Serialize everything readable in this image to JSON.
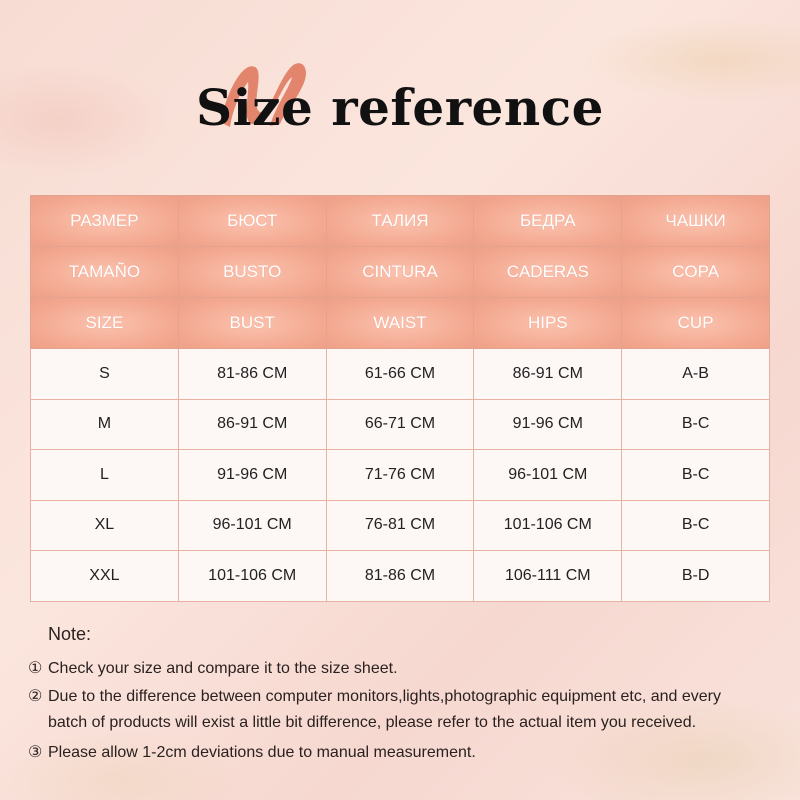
{
  "title": "Size reference",
  "table": {
    "header_rows": [
      [
        "РАЗМЕР",
        "БЮСТ",
        "ТАЛИЯ",
        "БЕДРА",
        "ЧАШКИ"
      ],
      [
        "TAMAÑO",
        "BUSTO",
        "CINTURA",
        "CADERAS",
        "COPA"
      ],
      [
        "SIZE",
        "BUST",
        "WAIST",
        "HIPS",
        "CUP"
      ]
    ],
    "rows": [
      [
        "S",
        "81-86 CM",
        "61-66 CM",
        "86-91 CM",
        "A-B"
      ],
      [
        "M",
        "86-91 CM",
        "66-71 CM",
        "91-96 CM",
        "B-C"
      ],
      [
        "L",
        "91-96 CM",
        "71-76 CM",
        "96-101 CM",
        "B-C"
      ],
      [
        "XL",
        "96-101 CM",
        "76-81 CM",
        "101-106 CM",
        "B-C"
      ],
      [
        "XXL",
        "101-106 CM",
        "81-86 CM",
        "106-111 CM",
        "B-D"
      ]
    ]
  },
  "notes": {
    "title": "Note:",
    "items": [
      {
        "num": "①",
        "text": "Check your size and compare it to the size sheet."
      },
      {
        "num": "②",
        "text": "Due to the difference between computer monitors,lights,photographic equipment etc, and every"
      },
      {
        "num": "",
        "text": "batch of products will exist a little bit difference, please refer to the actual item you received."
      },
      {
        "num": "③",
        "text": "Please allow 1-2cm deviations due to manual measurement."
      }
    ]
  },
  "colors": {
    "header": "#f3a890",
    "accent_brush": "#e07a60",
    "row_bg": "#fdf8f5"
  }
}
